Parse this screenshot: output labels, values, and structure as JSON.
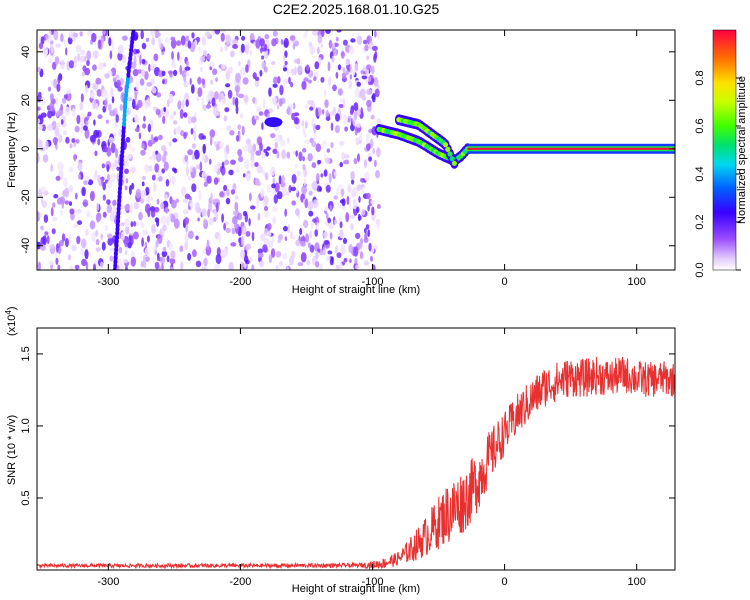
{
  "figure": {
    "title": "C2E2.2025.168.01.10.G25"
  },
  "chart_data": [
    {
      "type": "heatmap",
      "panel": "spectrogram",
      "xlabel": "Height of straight line (km)",
      "ylabel": "Frequency (Hz)",
      "xlim": [
        -354,
        129
      ],
      "ylim": [
        -50,
        49
      ],
      "x_ticks": [
        -300,
        -200,
        -100,
        0,
        100
      ],
      "x_tick_labels": [
        "-300",
        "-200",
        "-100",
        "0",
        "100"
      ],
      "y_ticks": [
        -40,
        -20,
        0,
        20,
        40
      ],
      "y_tick_labels": [
        "-40",
        "-20",
        "0",
        "20",
        "40"
      ],
      "colorbar": {
        "label": "Normalized spectral amplitude",
        "range": [
          0,
          1
        ],
        "ticks": [
          0.0,
          0.2,
          0.4,
          0.6,
          0.8
        ],
        "tick_labels": [
          "0.0",
          "0.2",
          "0.4",
          "0.6",
          "0.8"
        ],
        "colormap": "rainbow (white-violet-blue-cyan-green-yellow-orange-red)"
      },
      "features": {
        "noise_region_x": [
          -354,
          -95
        ],
        "noise_amplitude_range": [
          0.0,
          0.2
        ],
        "drifting_trace": [
          {
            "x": -295,
            "y": -50
          },
          {
            "x": -287,
            "y": 20
          },
          {
            "x": -281,
            "y": 49
          }
        ],
        "isolated_blob": {
          "x": -175,
          "y": 11,
          "amplitude": 0.25
        },
        "signal_track": [
          {
            "x": -95,
            "y": 8
          },
          {
            "x": -80,
            "y": 6
          },
          {
            "x": -65,
            "y": 3
          },
          {
            "x": -50,
            "y": -2
          },
          {
            "x": -38,
            "y": -5
          },
          {
            "x": -33,
            "y": -3
          },
          {
            "x": -28,
            "y": 0
          },
          {
            "x": 129,
            "y": 0
          }
        ],
        "upper_branch": [
          {
            "x": -80,
            "y": 12
          },
          {
            "x": -65,
            "y": 10
          },
          {
            "x": -55,
            "y": 6
          },
          {
            "x": -45,
            "y": 2
          },
          {
            "x": -38,
            "y": -6
          }
        ],
        "carrier_amplitude": 1.0
      }
    },
    {
      "type": "line",
      "panel": "snr",
      "xlabel": "Height of straight line (km)",
      "ylabel": "SNR (10 * v/v)",
      "y_multiplier_label": "(x10",
      "y_multiplier_exp": "4",
      "y_multiplier_close": ")",
      "xlim": [
        -354,
        129
      ],
      "ylim": [
        0,
        16800
      ],
      "x_ticks": [
        -300,
        -200,
        -100,
        0,
        100
      ],
      "x_tick_labels": [
        "-300",
        "-200",
        "-100",
        "0",
        "100"
      ],
      "y_ticks": [
        5000,
        10000,
        15000
      ],
      "y_tick_labels": [
        "0.5",
        "1.0",
        "1.5"
      ],
      "line_color": "#e83030",
      "series": [
        {
          "x": [
            -354,
            -300,
            -200,
            -120,
            -100,
            -90,
            -80,
            -70,
            -60,
            -50,
            -45,
            -40,
            -35,
            -30,
            -25,
            -20,
            -15,
            -10,
            -5,
            0,
            10,
            20,
            30,
            40,
            50,
            60,
            70,
            80,
            90,
            100,
            110,
            120,
            129
          ],
          "values": [
            300,
            300,
            300,
            320,
            350,
            500,
            800,
            1500,
            2300,
            3300,
            3800,
            4100,
            4500,
            4900,
            5500,
            6300,
            7200,
            8000,
            8800,
            9500,
            10800,
            11800,
            12700,
            13100,
            13400,
            13300,
            13500,
            13300,
            13600,
            13300,
            13200,
            13300,
            13200
          ]
        }
      ],
      "noise_amplitude": [
        {
          "x": -354,
          "amp": 120
        },
        {
          "x": -110,
          "amp": 150
        },
        {
          "x": -80,
          "amp": 500
        },
        {
          "x": -60,
          "amp": 1400
        },
        {
          "x": -40,
          "amp": 2300
        },
        {
          "x": -20,
          "amp": 2200
        },
        {
          "x": 0,
          "amp": 1500
        },
        {
          "x": 40,
          "amp": 1400
        },
        {
          "x": 129,
          "amp": 1200
        }
      ]
    }
  ]
}
